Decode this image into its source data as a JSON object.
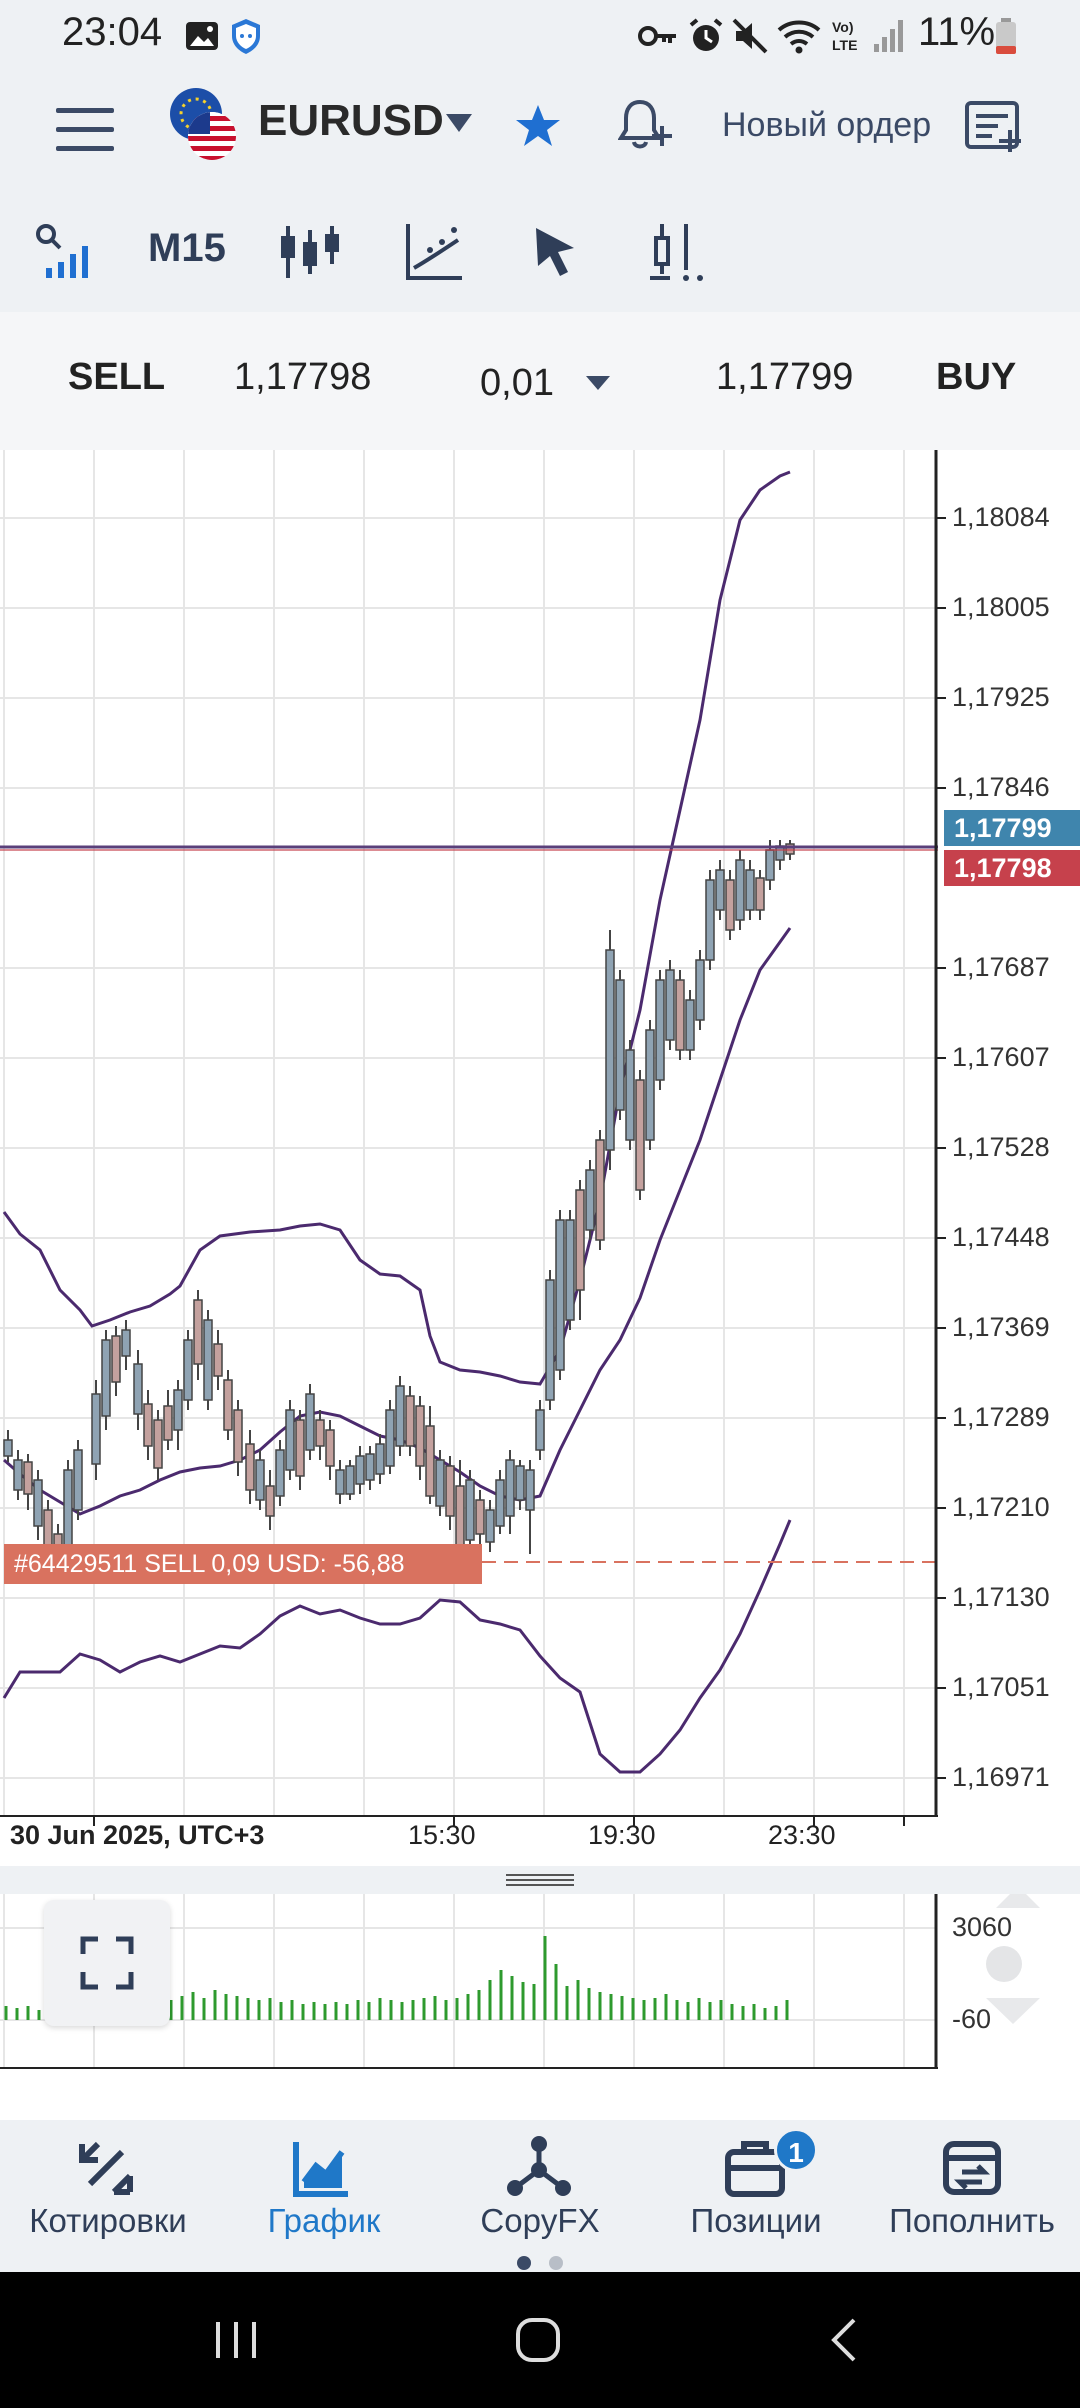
{
  "status_bar": {
    "time": "23:04",
    "battery": "11%",
    "icons": [
      "image-icon",
      "shield-icon",
      "key-icon",
      "alarm-icon",
      "mute-icon",
      "wifi-icon",
      "lte-icon",
      "signal-icon",
      "battery-icon"
    ]
  },
  "header": {
    "menu_icon": "menu-icon",
    "symbol": "EURUSD",
    "new_order": "Новый ордер"
  },
  "toolbar": {
    "timeframe": "M15"
  },
  "trade_bar": {
    "sell_label": "SELL",
    "sell_price": "1,17798",
    "lot": "0,01",
    "buy_price": "1,17799",
    "buy_label": "BUY"
  },
  "chart": {
    "price_axis": [
      "1,18084",
      "1,18005",
      "1,17925",
      "1,17846",
      "1,17687",
      "1,17607",
      "1,17528",
      "1,17448",
      "1,17369",
      "1,17289",
      "1,17210",
      "1,17130",
      "1,17051",
      "1,16971"
    ],
    "ask_tag": "1,17799",
    "bid_tag": "1,17798",
    "date_label": "30 Jun 2025, UTC+3",
    "time_labels": [
      "15:30",
      "19:30",
      "23:30"
    ],
    "order_tag": "#64429511 SELL 0,09 USD:   -56,88",
    "colors": {
      "candle_body": "#8fa3b3",
      "candle_bear_body": "#c4a19e",
      "band": "#4b2a6e",
      "ask": "#3f85ad",
      "bid": "#c6414c",
      "order": "#d9725f",
      "volume": "#2e9a2e"
    }
  },
  "volume_panel": {
    "max_label": "3060",
    "min_label": "-60"
  },
  "bottom_nav": {
    "items": [
      {
        "label": "Котировки",
        "icon": "quotes-icon"
      },
      {
        "label": "График",
        "icon": "chart-icon"
      },
      {
        "label": "CopyFX",
        "icon": "copyfx-icon"
      },
      {
        "label": "Позиции",
        "icon": "positions-icon",
        "badge": "1"
      },
      {
        "label": "Пополнить",
        "icon": "deposit-icon"
      }
    ]
  }
}
